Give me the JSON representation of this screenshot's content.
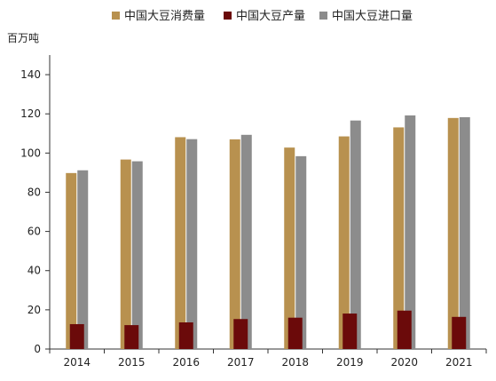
{
  "chart_data": {
    "type": "bar",
    "unit_label": "百万吨",
    "categories": [
      "2014",
      "2015",
      "2016",
      "2017",
      "2018",
      "2019",
      "2020",
      "2021"
    ],
    "series": [
      {
        "name": "中国大豆消费量",
        "color": "#B8914F",
        "values": [
          89.8,
          96.7,
          108.1,
          107.0,
          102.8,
          108.5,
          113.1,
          117.9
        ]
      },
      {
        "name": "中国大豆产量",
        "color": "#6B0A0A",
        "values": [
          12.7,
          12.2,
          13.6,
          15.3,
          16.0,
          18.1,
          19.6,
          16.4
        ]
      },
      {
        "name": "中国大豆进口量",
        "color": "#8C8C8C",
        "values": [
          91.2,
          95.8,
          107.1,
          109.3,
          98.4,
          116.6,
          119.2,
          118.3
        ]
      }
    ],
    "ylim": [
      0,
      150
    ],
    "yticks": [
      0,
      20,
      40,
      60,
      80,
      100,
      120,
      140
    ],
    "grid": false,
    "legend_position": "top"
  }
}
